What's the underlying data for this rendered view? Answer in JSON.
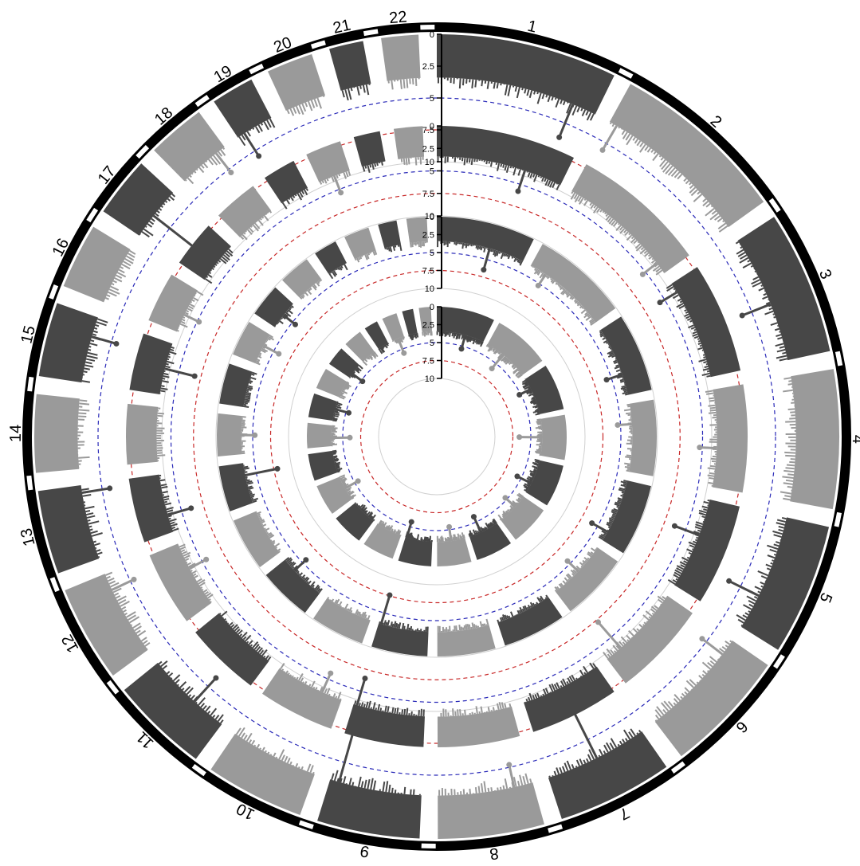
{
  "chart_data": {
    "type": "scatter",
    "chromosomes": [
      "1",
      "2",
      "3",
      "4",
      "5",
      "6",
      "7",
      "8",
      "9",
      "10",
      "11",
      "12",
      "13",
      "14",
      "15",
      "16",
      "17",
      "18",
      "19",
      "20",
      "21",
      "22"
    ],
    "chrom_lengths_mb": [
      249,
      243,
      198,
      191,
      181,
      171,
      159,
      146,
      141,
      136,
      135,
      133,
      115,
      107,
      102,
      90,
      83,
      80,
      59,
      64,
      47,
      51
    ],
    "y_ticks": [
      "0",
      "2.5",
      "5",
      "7.5",
      "10"
    ],
    "ylim": [
      0,
      10
    ],
    "thresholds": [
      {
        "value": 5,
        "color": "#2a2ab8"
      },
      {
        "value": 7.5,
        "color": "#c82828"
      }
    ],
    "point_colors": [
      "#474747",
      "#9a9a9a"
    ],
    "tracks": [
      {
        "baseline_max": 3.4,
        "peaks": [
          {
            "chrom": "1",
            "pos": 0.85,
            "value": 6.2
          },
          {
            "chrom": "2",
            "pos": 0.05,
            "value": 5.6
          },
          {
            "chrom": "3",
            "pos": 0.55,
            "value": 5.8
          },
          {
            "chrom": "5",
            "pos": 0.7,
            "value": 6.0
          },
          {
            "chrom": "6",
            "pos": 0.15,
            "value": 5.4
          },
          {
            "chrom": "7",
            "pos": 0.5,
            "value": 8.6
          },
          {
            "chrom": "8",
            "pos": 0.2,
            "value": 5.2
          },
          {
            "chrom": "9",
            "pos": 0.9,
            "value": 7.4
          },
          {
            "chrom": "11",
            "pos": 0.4,
            "value": 5.9
          },
          {
            "chrom": "12",
            "pos": 0.8,
            "value": 5.3
          },
          {
            "chrom": "13",
            "pos": 0.9,
            "value": 5.6
          },
          {
            "chrom": "15",
            "pos": 0.7,
            "value": 5.4
          },
          {
            "chrom": "17",
            "pos": 0.45,
            "value": 8.2
          },
          {
            "chrom": "18",
            "pos": 0.8,
            "value": 5.3
          },
          {
            "chrom": "19",
            "pos": 0.2,
            "value": 5.5
          }
        ]
      },
      {
        "baseline_max": 3.4,
        "peaks": [
          {
            "chrom": "1",
            "pos": 0.7,
            "value": 5.8
          },
          {
            "chrom": "2",
            "pos": 0.9,
            "value": 5.4
          },
          {
            "chrom": "3",
            "pos": 0.1,
            "value": 5.6
          },
          {
            "chrom": "4",
            "pos": 0.6,
            "value": 5.3
          },
          {
            "chrom": "5",
            "pos": 0.4,
            "value": 6.3
          },
          {
            "chrom": "6",
            "pos": 0.8,
            "value": 7.2
          },
          {
            "chrom": "9",
            "pos": 0.95,
            "value": 6.5
          },
          {
            "chrom": "10",
            "pos": 0.3,
            "value": 5.7
          },
          {
            "chrom": "12",
            "pos": 0.6,
            "value": 5.5
          },
          {
            "chrom": "13",
            "pos": 0.3,
            "value": 6.1
          },
          {
            "chrom": "15",
            "pos": 0.5,
            "value": 6.8
          },
          {
            "chrom": "16",
            "pos": 0.4,
            "value": 5.2
          },
          {
            "chrom": "20",
            "pos": 0.5,
            "value": 5.4
          }
        ]
      },
      {
        "baseline_max": 3.4,
        "peaks": [
          {
            "chrom": "1",
            "pos": 0.6,
            "value": 6.5
          },
          {
            "chrom": "2",
            "pos": 0.2,
            "value": 5.3
          },
          {
            "chrom": "3",
            "pos": 0.7,
            "value": 5.7
          },
          {
            "chrom": "4",
            "pos": 0.3,
            "value": 5.4
          },
          {
            "chrom": "5",
            "pos": 0.85,
            "value": 5.9
          },
          {
            "chrom": "6",
            "pos": 0.5,
            "value": 5.5
          },
          {
            "chrom": "9",
            "pos": 0.95,
            "value": 7.6
          },
          {
            "chrom": "11",
            "pos": 0.7,
            "value": 5.6
          },
          {
            "chrom": "13",
            "pos": 0.7,
            "value": 8.0
          },
          {
            "chrom": "14",
            "pos": 0.5,
            "value": 5.3
          },
          {
            "chrom": "16",
            "pos": 0.6,
            "value": 5.8
          },
          {
            "chrom": "17",
            "pos": 0.5,
            "value": 5.5
          }
        ]
      },
      {
        "baseline_max": 3.4,
        "peaks": [
          {
            "chrom": "1",
            "pos": 0.6,
            "value": 5.4
          },
          {
            "chrom": "2",
            "pos": 0.4,
            "value": 5.9
          },
          {
            "chrom": "3",
            "pos": 0.3,
            "value": 5.2
          },
          {
            "chrom": "4",
            "pos": 0.5,
            "value": 6.6
          },
          {
            "chrom": "5",
            "pos": 0.7,
            "value": 5.6
          },
          {
            "chrom": "6",
            "pos": 0.4,
            "value": 5.3
          },
          {
            "chrom": "7",
            "pos": 0.6,
            "value": 5.8
          },
          {
            "chrom": "8",
            "pos": 0.5,
            "value": 5.4
          },
          {
            "chrom": "9",
            "pos": 0.95,
            "value": 5.7
          },
          {
            "chrom": "12",
            "pos": 0.5,
            "value": 5.5
          },
          {
            "chrom": "14",
            "pos": 0.4,
            "value": 6.0
          },
          {
            "chrom": "15",
            "pos": 0.6,
            "value": 5.4
          },
          {
            "chrom": "17",
            "pos": 0.3,
            "value": 5.2
          },
          {
            "chrom": "20",
            "pos": 0.5,
            "value": 5.6
          }
        ]
      }
    ]
  }
}
